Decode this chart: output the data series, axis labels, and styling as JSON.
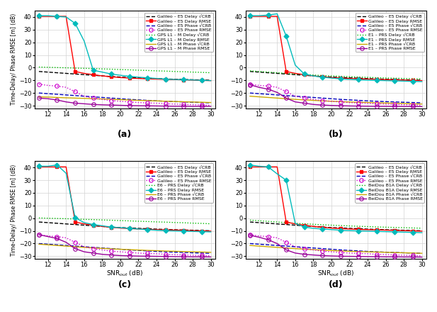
{
  "snr": [
    11,
    12,
    13,
    14,
    15,
    16,
    17,
    18,
    19,
    20,
    21,
    22,
    23,
    24,
    25,
    26,
    27,
    28,
    29,
    30
  ],
  "ylim": [
    -32,
    45
  ],
  "yticks": [
    -30,
    -20,
    -10,
    0,
    10,
    20,
    30,
    40
  ],
  "xlim": [
    10.5,
    30.5
  ],
  "xticks": [
    12,
    14,
    16,
    18,
    20,
    22,
    24,
    26,
    28,
    30
  ],
  "galileo_e5_delay_crb": [
    -3.0,
    -3.5,
    -4.0,
    -4.5,
    -5.0,
    -5.5,
    -6.0,
    -6.5,
    -7.0,
    -7.4,
    -7.7,
    -8.0,
    -8.3,
    -8.6,
    -8.9,
    -9.1,
    -9.3,
    -9.5,
    -9.7,
    -9.9
  ],
  "galileo_e5_delay_rmse": [
    40.5,
    40.5,
    40.5,
    40.5,
    -3.0,
    -4.5,
    -5.5,
    -6.5,
    -7.2,
    -7.8,
    -8.2,
    -8.5,
    -8.8,
    -9.0,
    -9.2,
    -9.4,
    -9.6,
    -9.8,
    -10.0,
    -10.2
  ],
  "galileo_e5_phase_crb": [
    -20.0,
    -20.5,
    -21.0,
    -21.5,
    -22.0,
    -22.5,
    -23.0,
    -23.5,
    -24.0,
    -24.5,
    -25.0,
    -25.4,
    -25.8,
    -26.2,
    -26.5,
    -26.8,
    -27.0,
    -27.3,
    -27.5,
    -27.7
  ],
  "galileo_e5_phase_rmse": [
    -13.0,
    -14.0,
    -14.5,
    -15.5,
    -19.0,
    -22.5,
    -24.0,
    -25.0,
    -26.0,
    -26.5,
    -27.0,
    -27.5,
    -27.8,
    -28.0,
    -28.5,
    -28.7,
    -29.0,
    -29.2,
    -29.5,
    -29.7
  ],
  "gps_l1m_delay_crb": [
    0.5,
    0.3,
    0.1,
    -0.1,
    -0.3,
    -0.5,
    -0.7,
    -1.0,
    -1.2,
    -1.5,
    -1.7,
    -2.0,
    -2.2,
    -2.5,
    -2.7,
    -3.0,
    -3.2,
    -3.5,
    -3.7,
    -4.0
  ],
  "gps_l1m_delay_rmse": [
    41.0,
    41.0,
    40.5,
    40.0,
    35.0,
    21.0,
    -2.0,
    -3.5,
    -5.0,
    -6.0,
    -6.8,
    -7.5,
    -8.0,
    -8.5,
    -9.0,
    -9.3,
    -9.5,
    -9.7,
    -10.0,
    -10.2
  ],
  "gps_l1m_phase_crb": [
    -23.0,
    -23.2,
    -23.5,
    -23.8,
    -24.0,
    -24.2,
    -24.5,
    -24.7,
    -25.0,
    -25.2,
    -25.5,
    -25.8,
    -26.0,
    -26.2,
    -26.5,
    -26.7,
    -26.9,
    -27.1,
    -27.3,
    -27.5
  ],
  "gps_l1m_phase_rmse": [
    -24.0,
    -24.5,
    -25.5,
    -27.0,
    -28.0,
    -28.5,
    -29.0,
    -29.3,
    -29.5,
    -29.7,
    -29.9,
    -30.0,
    -30.1,
    -30.2,
    -30.3,
    -30.4,
    -30.4,
    -30.5,
    -30.5,
    -30.5
  ],
  "e1prs_delay_crb": [
    -2.5,
    -3.0,
    -3.5,
    -4.0,
    -4.5,
    -5.0,
    -5.4,
    -5.8,
    -6.2,
    -6.5,
    -6.8,
    -7.1,
    -7.4,
    -7.6,
    -7.9,
    -8.1,
    -8.3,
    -8.5,
    -8.7,
    -8.9
  ],
  "e1prs_delay_rmse": [
    41.0,
    41.0,
    41.5,
    42.5,
    25.0,
    2.0,
    -5.0,
    -6.5,
    -7.5,
    -8.2,
    -8.8,
    -9.2,
    -9.5,
    -9.8,
    -10.0,
    -10.2,
    -10.4,
    -10.6,
    -10.8,
    -11.0
  ],
  "e1prs_phase_crb": [
    -22.5,
    -23.0,
    -23.5,
    -24.0,
    -24.5,
    -25.0,
    -25.4,
    -25.8,
    -26.2,
    -26.5,
    -26.8,
    -27.1,
    -27.3,
    -27.5,
    -27.7,
    -27.9,
    -28.1,
    -28.3,
    -28.5,
    -28.7
  ],
  "e1prs_phase_rmse": [
    -13.5,
    -15.5,
    -17.0,
    -19.5,
    -24.0,
    -27.0,
    -28.0,
    -29.0,
    -29.5,
    -29.8,
    -30.0,
    -30.2,
    -30.3,
    -30.4,
    -30.5,
    -30.5,
    -30.6,
    -30.6,
    -30.7,
    -30.7
  ],
  "e6prs_delay_crb": [
    0.2,
    0.0,
    -0.2,
    -0.4,
    -0.6,
    -0.9,
    -1.1,
    -1.4,
    -1.6,
    -1.9,
    -2.1,
    -2.4,
    -2.6,
    -2.9,
    -3.1,
    -3.4,
    -3.6,
    -3.9,
    -4.1,
    -4.4
  ],
  "e6prs_delay_rmse": [
    41.0,
    41.0,
    42.0,
    35.5,
    0.5,
    -3.5,
    -5.0,
    -6.0,
    -7.0,
    -7.5,
    -8.0,
    -8.5,
    -9.0,
    -9.5,
    -9.8,
    -10.0,
    -10.2,
    -10.4,
    -10.6,
    -10.8
  ],
  "e6prs_phase_crb": [
    -20.5,
    -21.0,
    -21.5,
    -22.0,
    -22.5,
    -23.0,
    -23.4,
    -23.8,
    -24.2,
    -24.5,
    -24.8,
    -25.1,
    -25.4,
    -25.6,
    -25.9,
    -26.1,
    -26.3,
    -26.5,
    -26.7,
    -26.9
  ],
  "e6prs_phase_rmse": [
    -13.0,
    -14.5,
    -16.0,
    -19.0,
    -24.0,
    -26.5,
    -27.5,
    -28.5,
    -29.0,
    -29.5,
    -29.7,
    -29.9,
    -30.0,
    -30.1,
    -30.2,
    -30.3,
    -30.4,
    -30.5,
    -30.5,
    -30.6
  ],
  "beidou_delay_crb": [
    -1.5,
    -2.0,
    -2.5,
    -3.0,
    -3.5,
    -4.0,
    -4.4,
    -4.8,
    -5.2,
    -5.5,
    -5.8,
    -6.1,
    -6.4,
    -6.6,
    -6.9,
    -7.1,
    -7.3,
    -7.5,
    -7.7,
    -7.9
  ],
  "beidou_delay_rmse": [
    42.0,
    41.0,
    40.5,
    35.0,
    30.0,
    -4.0,
    -7.0,
    -8.0,
    -8.5,
    -9.0,
    -9.5,
    -9.8,
    -10.0,
    -10.2,
    -10.4,
    -10.6,
    -10.8,
    -11.0,
    -11.2,
    -11.4
  ],
  "beidou_phase_crb": [
    -21.5,
    -22.0,
    -22.5,
    -23.0,
    -23.5,
    -24.0,
    -24.4,
    -24.8,
    -25.2,
    -25.5,
    -25.8,
    -26.1,
    -26.3,
    -26.5,
    -26.7,
    -26.9,
    -27.1,
    -27.3,
    -27.5,
    -27.7
  ],
  "beidou_phase_rmse": [
    -13.5,
    -15.0,
    -17.0,
    -20.0,
    -25.0,
    -27.5,
    -28.5,
    -29.0,
    -29.5,
    -29.8,
    -30.0,
    -30.1,
    -30.2,
    -30.3,
    -30.4,
    -30.5,
    -30.5,
    -30.6,
    -30.6,
    -30.7
  ],
  "legend_a": [
    "Galileo – E5 Delay √CRB",
    "Galileo – E5 Delay RMSE",
    "Galileo – E5 Phase √CRB",
    "Galileo – E5 Phase RMSE",
    "GPS L1 – M Delay √CRB",
    "GPS L1 – M Delay RMSE",
    "GPS L1 – M Phase √CRB",
    "GPS L1 – M Phase RMSE"
  ],
  "legend_b": [
    "Galileo – E5 Delay √CRB",
    "Galileo – E5 Delay RMSE",
    "Galileo – E5 Phase √CRB",
    "Galileo – E5 Phase RMSE",
    "E1 – PRS Delay √CRB",
    "E1 – PRS Delay RMSE",
    "E1 – PRS Phase √CRB",
    "E1 – PRS Phase RMSE"
  ],
  "legend_c": [
    "Galileo – E5 Delay √CRB",
    "Galileo – E5 Delay RMSE",
    "Galileo – E5 Phase √CRB",
    "Galileo – E5 Phase RMSE",
    "E6 – PRS Delay √CRB",
    "E6 – PRS Delay RMSE",
    "E6 – PRS Phase √CRB",
    "E6 – PRS Phase RMSE"
  ],
  "legend_d": [
    "Galileo – E5 Delay √CRB",
    "Galileo – E5 Delay RMSE",
    "Galileo – E5 Phase √CRB",
    "Galileo – E5 Phase RMSE",
    "BeiDou B1A Delay √CRB",
    "BeiDou B1A Delay RMSE",
    "BeiDou B1A Phase √CRB",
    "BeiDou B1A Phase RMSE"
  ],
  "subplot_labels": [
    "(a)",
    "(b)",
    "(c)",
    "(d)"
  ],
  "ylabel": "Time-Delay/ Phase RMSE [m] (dB)",
  "xlabel": "SNR$_{out}$ (dB)",
  "bg_color": "#ffffff",
  "grid_color": "#d3d3d3",
  "c_black": "#000000",
  "c_red": "#ff0000",
  "c_blue": "#0000bb",
  "c_magenta": "#cc00cc",
  "c_green": "#00bb00",
  "c_cyan": "#00bbbb",
  "c_yellow": "#ccaa00",
  "c_purple": "#990099"
}
